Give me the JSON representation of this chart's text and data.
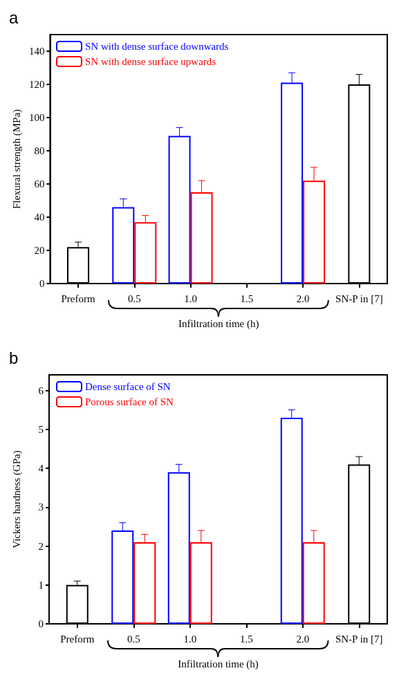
{
  "chart_data": [
    {
      "type": "bar",
      "title": "a",
      "ylabel": "Flexural strength (MPa)",
      "xlabel": "Infiltration time (h)",
      "categories": [
        "Preform",
        "0.5",
        "1.0",
        "1.5",
        "2.0",
        "SN-P in [7]"
      ],
      "ylim": [
        0,
        150
      ],
      "yticks": [
        0,
        20,
        40,
        60,
        80,
        100,
        120,
        140
      ],
      "grid": false,
      "legend": "top left",
      "series": [
        {
          "color": "#000000",
          "values": [
            22,
            null,
            null,
            null,
            null,
            120
          ],
          "errors": [
            3,
            null,
            null,
            null,
            null,
            6
          ]
        },
        {
          "name": "SN with dense surface downwards",
          "color": "#0000ff",
          "values": [
            null,
            46,
            89,
            null,
            121,
            null
          ],
          "errors": [
            null,
            5,
            5,
            null,
            6,
            null
          ]
        },
        {
          "name": "SN with dense surface upwards",
          "color": "#ff0000",
          "values": [
            null,
            37,
            55,
            null,
            62,
            null
          ],
          "errors": [
            null,
            4,
            7,
            null,
            8,
            null
          ]
        }
      ]
    },
    {
      "type": "bar",
      "title": "b",
      "ylabel": "Vickers hardness (GPa)",
      "xlabel": "Infiltration time (h)",
      "categories": [
        "Preform",
        "0.5",
        "1.0",
        "1.5",
        "2.0",
        "SN-P in [7]"
      ],
      "ylim": [
        0,
        6.4
      ],
      "yticks": [
        0,
        1,
        2,
        3,
        4,
        5,
        6
      ],
      "grid": false,
      "legend": "top left",
      "series": [
        {
          "color": "#000000",
          "values": [
            1.0,
            null,
            null,
            null,
            null,
            4.1
          ],
          "errors": [
            0.1,
            null,
            null,
            null,
            null,
            0.2
          ]
        },
        {
          "name": "Dense surface of SN",
          "color": "#0000ff",
          "values": [
            null,
            2.4,
            3.9,
            null,
            5.3,
            null
          ],
          "errors": [
            null,
            0.2,
            0.2,
            null,
            0.2,
            null
          ]
        },
        {
          "name": "Porous surface of SN",
          "color": "#ff0000",
          "values": [
            null,
            2.1,
            2.1,
            null,
            2.1,
            null
          ],
          "errors": [
            null,
            0.2,
            0.3,
            null,
            0.3,
            null
          ]
        }
      ]
    }
  ]
}
